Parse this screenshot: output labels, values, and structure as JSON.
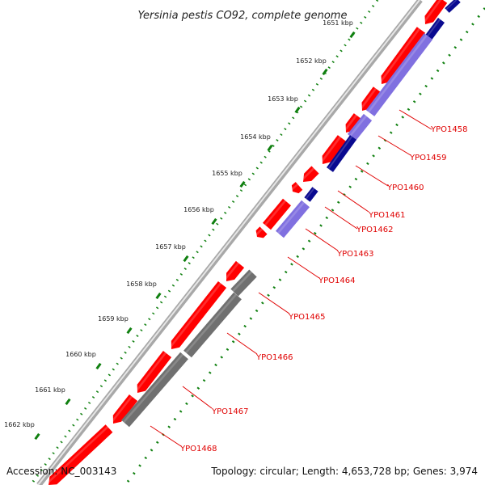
{
  "title": "Yersinia pestis CO92, complete genome",
  "footer": {
    "accession": "Accession: NC_003143",
    "summary": "Topology: circular; Length: 4,653,728 bp; Genes: 3,974"
  },
  "scale_labels": [
    "1651 kbp",
    "1652 kbp",
    "1653 kbp",
    "1654 kbp",
    "1655 kbp",
    "1656 kbp",
    "1657 kbp",
    "1658 kbp",
    "1659 kbp",
    "1660 kbp",
    "1661 kbp",
    "1662 kbp"
  ],
  "gene_labels": [
    "YPO1458",
    "YPO1459",
    "YPO1460",
    "YPO1461",
    "YPO1462",
    "YPO1463",
    "YPO1464",
    "YPO1465",
    "YPO1466",
    "YPO1467",
    "YPO1468"
  ],
  "colors": {
    "cds": "#ff0000",
    "rrna_light": "#8070e0",
    "rrna_dark": "#0a0a90",
    "pseudogene": "#707070",
    "backbone": "#a8a8a8",
    "tick": "#108010",
    "label": "#e00000"
  }
}
